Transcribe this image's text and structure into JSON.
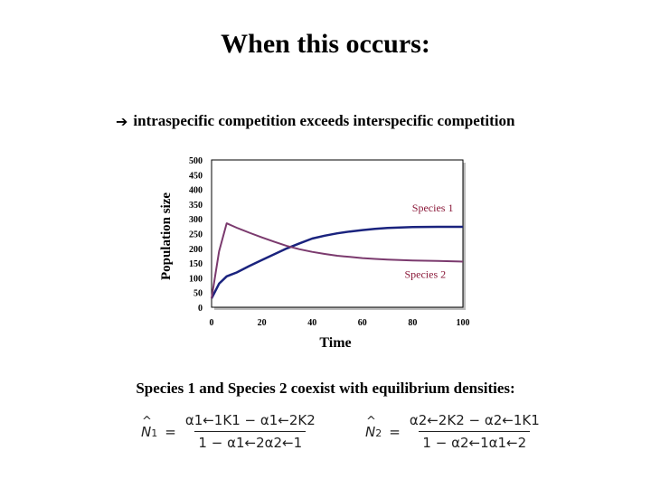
{
  "slide": {
    "title": "When this occurs:",
    "statement": "intraspecific competition exceeds interspecific competition",
    "statement_icon": "right-arrow-icon",
    "coexist_text": "Species 1 and Species 2 coexist with equilibrium densities:",
    "equations": [
      {
        "lhs_symbol": "N",
        "lhs_sub": "1",
        "numerator": "α1←1K1 − α1←2K2",
        "denominator": "1 − α1←2α2←1"
      },
      {
        "lhs_symbol": "N",
        "lhs_sub": "2",
        "numerator": "α2←2K2 − α2←1K1",
        "denominator": "1 − α2←1α1←2"
      }
    ]
  },
  "chart_data": {
    "type": "line",
    "ylabel": "Population size",
    "xlabel": "Time",
    "xlim": [
      0,
      100
    ],
    "ylim": [
      0,
      500
    ],
    "xticks": [
      0,
      20,
      40,
      60,
      80,
      100
    ],
    "yticks": [
      0,
      50,
      100,
      150,
      200,
      250,
      300,
      350,
      400,
      450,
      500
    ],
    "series": [
      {
        "name": "Species 1",
        "color": "#1a237e",
        "points": [
          [
            0,
            30
          ],
          [
            3,
            80
          ],
          [
            6,
            105
          ],
          [
            10,
            118
          ],
          [
            15,
            140
          ],
          [
            20,
            160
          ],
          [
            25,
            180
          ],
          [
            30,
            200
          ],
          [
            35,
            217
          ],
          [
            40,
            233
          ],
          [
            45,
            243
          ],
          [
            50,
            251
          ],
          [
            55,
            257
          ],
          [
            60,
            262
          ],
          [
            65,
            266
          ],
          [
            70,
            269
          ],
          [
            80,
            272
          ],
          [
            90,
            273
          ],
          [
            100,
            273
          ]
        ]
      },
      {
        "name": "Species 2",
        "color": "#7b3a6e",
        "points": [
          [
            0,
            30
          ],
          [
            3,
            190
          ],
          [
            6,
            285
          ],
          [
            10,
            270
          ],
          [
            15,
            253
          ],
          [
            20,
            237
          ],
          [
            25,
            222
          ],
          [
            30,
            208
          ],
          [
            35,
            197
          ],
          [
            40,
            188
          ],
          [
            45,
            181
          ],
          [
            50,
            175
          ],
          [
            55,
            171
          ],
          [
            60,
            167
          ],
          [
            65,
            164
          ],
          [
            70,
            162
          ],
          [
            80,
            159
          ],
          [
            90,
            157
          ],
          [
            100,
            155
          ]
        ]
      }
    ],
    "annotations": [
      {
        "text": "Species 1",
        "series": 0
      },
      {
        "text": "Species 2",
        "series": 1
      }
    ],
    "grid": false,
    "legend": "none"
  }
}
